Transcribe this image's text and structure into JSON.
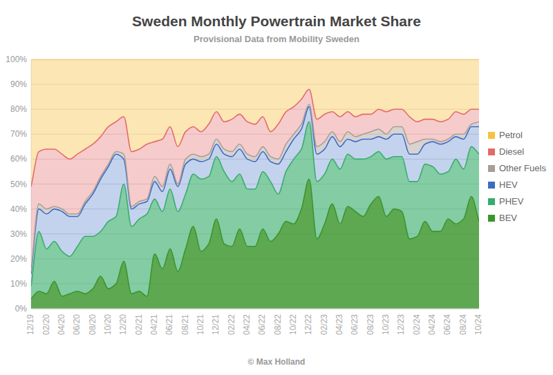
{
  "chart_data": {
    "type": "area",
    "title": "Sweden Monthly Powertrain Market Share",
    "subtitle": "Provisional Data from Mobility Sweden",
    "annotations": [
      "© Max Holland"
    ],
    "stacked": true,
    "grid": true,
    "legend": "right",
    "categories": [
      "12/19",
      null,
      "02/20",
      null,
      "04/20",
      null,
      "06/20",
      null,
      "08/20",
      null,
      "10/20",
      null,
      "12/20",
      null,
      "02/21",
      null,
      "04/21",
      null,
      "06/21",
      null,
      "08/21",
      null,
      "10/21",
      null,
      "12/21",
      null,
      "02/22",
      null,
      "04/22",
      null,
      "06/22",
      null,
      "08/22",
      null,
      "10/22",
      null,
      "12/22",
      null,
      "02/23",
      null,
      "04/23",
      null,
      "06/23",
      null,
      "08/23",
      null,
      "10/23",
      null,
      "12/23",
      null,
      "02/24",
      null,
      "04/24",
      null,
      "06/24",
      null,
      "08/24",
      null,
      "10/24"
    ],
    "ylim": [
      0,
      100
    ],
    "yticks": [
      {
        "value": 0,
        "label": "0%"
      },
      {
        "value": 10,
        "label": "10%"
      },
      {
        "value": 20,
        "label": "20%"
      },
      {
        "value": 30,
        "label": "30%"
      },
      {
        "value": 40,
        "label": "40%"
      },
      {
        "value": 50,
        "label": "50%"
      },
      {
        "value": 60,
        "label": "60%"
      },
      {
        "value": 70,
        "label": "70%"
      },
      {
        "value": 80,
        "label": "80%"
      },
      {
        "value": 90,
        "label": "90%"
      },
      {
        "value": 100,
        "label": "100%"
      }
    ],
    "series": [
      {
        "name": "Petrol",
        "color": "#f7c142",
        "values": [
          51,
          37,
          36,
          36,
          38,
          40,
          38,
          36,
          34,
          31,
          27,
          25,
          23,
          37,
          36,
          34,
          33,
          32,
          27,
          35,
          29,
          27,
          29,
          26,
          21,
          25,
          24,
          22,
          25,
          26,
          23,
          29,
          26,
          21,
          19,
          16,
          12,
          24,
          22,
          21,
          23,
          21,
          23,
          22,
          22,
          20,
          21,
          20,
          20,
          23,
          25,
          24,
          24,
          25,
          24,
          21,
          22,
          20,
          20
        ]
      },
      {
        "name": "Diesel",
        "color": "#e46a6a",
        "values": [
          34,
          21,
          24,
          23,
          22,
          22,
          24,
          21,
          19,
          16,
          15,
          12,
          15,
          22,
          21,
          22,
          14,
          19,
          15,
          15,
          11,
          11,
          10,
          12,
          11,
          11,
          13,
          12,
          13,
          13,
          12,
          10,
          14,
          13,
          11,
          10,
          6,
          11,
          11,
          8,
          10,
          8,
          8,
          8,
          7,
          8,
          9,
          7,
          7,
          11,
          8,
          8,
          8,
          8,
          8,
          9,
          8,
          6,
          5
        ]
      },
      {
        "name": "Other Fuels",
        "color": "#a89e98",
        "values": [
          1,
          2,
          2,
          1,
          1,
          1,
          1,
          1,
          1,
          1,
          1,
          1,
          2,
          1,
          1,
          1,
          2,
          2,
          2,
          1,
          2,
          2,
          2,
          2,
          2,
          2,
          2,
          2,
          2,
          2,
          2,
          2,
          2,
          3,
          2,
          2,
          1,
          3,
          3,
          2,
          2,
          3,
          2,
          2,
          3,
          3,
          2,
          3,
          3,
          4,
          5,
          2,
          1,
          1,
          1,
          1,
          2,
          1,
          2
        ]
      },
      {
        "name": "HEV",
        "color": "#3d6cc4",
        "values": [
          5,
          9,
          14,
          13,
          16,
          16,
          12,
          13,
          17,
          21,
          22,
          25,
          10,
          7,
          6,
          5,
          7,
          8,
          8,
          10,
          12,
          6,
          7,
          7,
          5,
          7,
          10,
          10,
          12,
          11,
          8,
          8,
          12,
          8,
          8,
          8,
          6,
          11,
          10,
          9,
          9,
          6,
          7,
          8,
          7,
          6,
          8,
          9,
          9,
          11,
          11,
          8,
          10,
          12,
          12,
          9,
          12,
          8,
          11
        ]
      },
      {
        "name": "PHEV",
        "color": "#37ad6c",
        "values": [
          5,
          24,
          18,
          16,
          18,
          15,
          18,
          23,
          21,
          18,
          27,
          27,
          31,
          27,
          29,
          33,
          22,
          23,
          24,
          24,
          22,
          21,
          29,
          27,
          25,
          29,
          26,
          22,
          23,
          23,
          23,
          24,
          16,
          20,
          26,
          24,
          23,
          23,
          20,
          18,
          22,
          21,
          21,
          23,
          19,
          18,
          23,
          21,
          22,
          23,
          22,
          23,
          26,
          23,
          19,
          26,
          20,
          20,
          27
        ]
      },
      {
        "name": "BEV",
        "color": "#3a952c",
        "values": [
          4,
          7,
          6,
          11,
          5,
          6,
          7,
          6,
          8,
          13,
          8,
          10,
          19,
          6,
          7,
          5,
          22,
          16,
          24,
          15,
          24,
          33,
          23,
          26,
          36,
          26,
          25,
          32,
          25,
          25,
          32,
          27,
          30,
          35,
          34,
          40,
          52,
          28,
          34,
          42,
          34,
          41,
          39,
          37,
          42,
          45,
          37,
          40,
          39,
          28,
          29,
          35,
          31,
          31,
          36,
          34,
          36,
          45,
          35
        ]
      }
    ]
  }
}
